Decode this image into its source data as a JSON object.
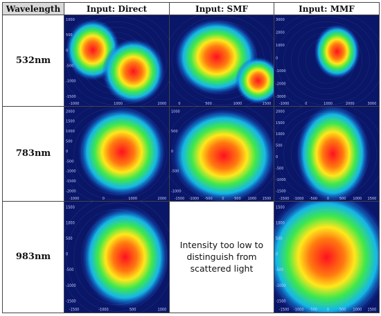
{
  "headers": [
    "Wavelength",
    "Input: Direct",
    "Input: SMF",
    "Input: MMF"
  ],
  "rows": [
    {
      "wavelength": "532nm",
      "cells": [
        {
          "kind": "image",
          "name": "beam-profile-532nm-direct",
          "spots": [
            {
              "cx": 0.27,
              "cy": 0.38,
              "rx": 0.26,
              "ry": 0.34
            },
            {
              "cx": 0.66,
              "cy": 0.62,
              "rx": 0.3,
              "ry": 0.36
            }
          ],
          "xticks": [
            "-1000",
            "1000",
            "2000"
          ],
          "yticks": [
            "1000",
            "500",
            "0",
            "-500",
            "-1000",
            "-1500"
          ]
        },
        {
          "kind": "image",
          "name": "beam-profile-532nm-smf",
          "spots": [
            {
              "cx": 0.45,
              "cy": 0.46,
              "rx": 0.4,
              "ry": 0.42
            },
            {
              "cx": 0.85,
              "cy": 0.72,
              "rx": 0.22,
              "ry": 0.26
            }
          ],
          "xticks": [
            "0",
            "500",
            "1000",
            "1500"
          ],
          "yticks": []
        },
        {
          "kind": "image",
          "name": "beam-profile-532nm-mmf",
          "spots": [
            {
              "cx": 0.6,
              "cy": 0.4,
              "rx": 0.22,
              "ry": 0.3
            }
          ],
          "xticks": [
            "-1000",
            "0",
            "1000",
            "2000",
            "3000"
          ],
          "yticks": [
            "3000",
            "2000",
            "1000",
            "0",
            "-1000",
            "-2000",
            "-3000"
          ]
        }
      ]
    },
    {
      "wavelength": "783nm",
      "cells": [
        {
          "kind": "image",
          "name": "beam-profile-783nm-direct",
          "spots": [
            {
              "cx": 0.55,
              "cy": 0.48,
              "rx": 0.42,
              "ry": 0.48
            }
          ],
          "xticks": [
            "-1000",
            "0",
            "1000",
            "2000"
          ],
          "yticks": [
            "2000",
            "1500",
            "1000",
            "500",
            "0",
            "-500",
            "-1000",
            "-1500",
            "-2000"
          ]
        },
        {
          "kind": "image",
          "name": "beam-profile-783nm-smf",
          "spots": [
            {
              "cx": 0.52,
              "cy": 0.52,
              "rx": 0.5,
              "ry": 0.5
            }
          ],
          "xticks": [
            "-1500",
            "-1000",
            "-500",
            "0",
            "500",
            "1000",
            "1500"
          ],
          "yticks": [
            "1000",
            "500",
            "0",
            "-500",
            "-1000"
          ]
        },
        {
          "kind": "image",
          "name": "beam-profile-783nm-mmf",
          "spots": [
            {
              "cx": 0.56,
              "cy": 0.5,
              "rx": 0.35,
              "ry": 0.52
            }
          ],
          "xticks": [
            "-1500",
            "-1000",
            "-500",
            "0",
            "500",
            "1000",
            "1500"
          ],
          "yticks": [
            "2000",
            "1500",
            "1000",
            "500",
            "0",
            "-500",
            "-1000",
            "-1500"
          ]
        }
      ]
    },
    {
      "wavelength": "983nm",
      "cells": [
        {
          "kind": "image",
          "name": "beam-profile-983nm-direct",
          "spots": [
            {
              "cx": 0.58,
              "cy": 0.5,
              "rx": 0.42,
              "ry": 0.46
            }
          ],
          "xticks": [
            "-1500",
            "-1000",
            "500",
            "1000"
          ],
          "yticks": [
            "1500",
            "1000",
            "500",
            "0",
            "-500",
            "-1000",
            "-1500"
          ]
        },
        {
          "kind": "text",
          "name": "note-983nm-smf",
          "text": [
            "Intensity too low to",
            "distinguish from",
            "scattered light"
          ]
        },
        {
          "kind": "image",
          "name": "beam-profile-983nm-mmf",
          "spots": [
            {
              "cx": 0.5,
              "cy": 0.5,
              "rx": 0.6,
              "ry": 0.6
            }
          ],
          "xticks": [
            "-1500",
            "-1000",
            "-500",
            "0",
            "500",
            "1000",
            "1500"
          ],
          "yticks": [
            "1500",
            "1000",
            "500",
            "0",
            "-500",
            "-1000",
            "-1500"
          ]
        }
      ]
    }
  ]
}
